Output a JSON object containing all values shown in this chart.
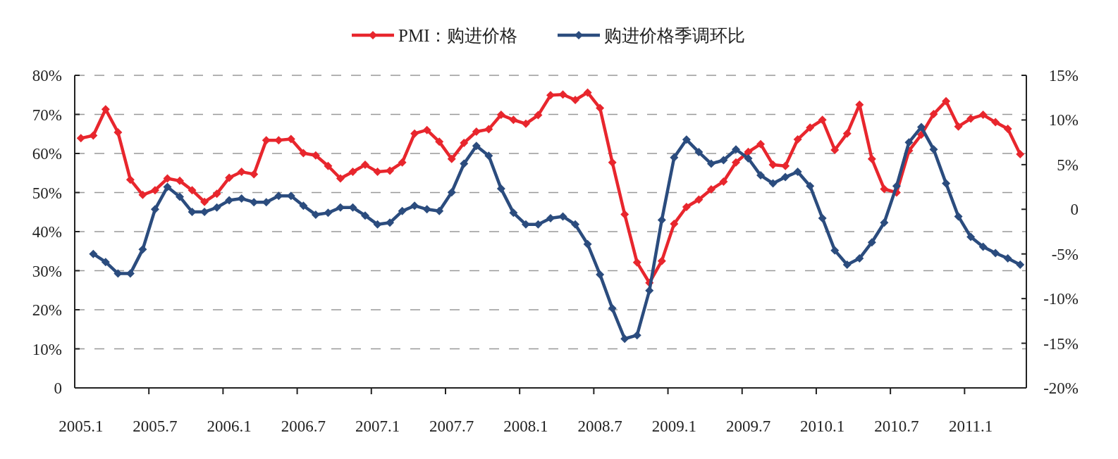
{
  "chart_data": {
    "type": "line",
    "categories": [
      "2005.1",
      null,
      null,
      null,
      null,
      null,
      "2005.7",
      null,
      null,
      null,
      null,
      null,
      "2006.1",
      null,
      null,
      null,
      null,
      null,
      "2006.7",
      null,
      null,
      null,
      null,
      null,
      "2007.1",
      null,
      null,
      null,
      null,
      null,
      "2007.7",
      null,
      null,
      null,
      null,
      null,
      "2008.1",
      null,
      null,
      null,
      null,
      null,
      "2008.7",
      null,
      null,
      null,
      null,
      null,
      "2009.1",
      null,
      null,
      null,
      null,
      null,
      "2009.7",
      null,
      null,
      null,
      null,
      null,
      "2010.1",
      null,
      null,
      null,
      null,
      null,
      "2010.7",
      null,
      null,
      null,
      null,
      null,
      "2011.1",
      null,
      null,
      null,
      null
    ],
    "series": [
      {
        "name": "PMI：购进价格",
        "color": "#e8262d",
        "values": [
          63.9,
          64.6,
          71.3,
          65.4,
          53.3,
          49.4,
          50.6,
          53.6,
          53.0,
          50.6,
          47.6,
          49.7,
          53.8,
          55.3,
          54.7,
          63.4,
          63.4,
          63.7,
          60.1,
          59.5,
          56.8,
          53.6,
          55.3,
          57.1,
          55.3,
          55.6,
          57.7,
          65.1,
          66.0,
          63.0,
          58.6,
          62.7,
          65.6,
          66.2,
          69.9,
          68.6,
          67.6,
          69.8,
          74.9,
          75.1,
          73.7,
          75.6,
          71.6,
          57.7,
          44.4,
          32.1,
          26.9,
          32.5,
          42.0,
          46.3,
          48.2,
          50.8,
          52.8,
          57.7,
          60.4,
          62.4,
          57.1,
          56.8,
          63.6,
          66.6,
          68.6,
          60.9,
          65.1,
          72.5,
          58.6,
          50.9,
          50.0,
          60.7,
          64.8,
          70.1,
          73.4,
          66.9,
          68.9,
          69.9,
          68.0,
          66.3,
          59.8
        ]
      },
      {
        "name": "购进价格季调环比",
        "color": "#2b4c7e",
        "axis": "y2",
        "values": [
          null,
          -5.0,
          -5.9,
          -7.2,
          -7.2,
          -4.5,
          0.0,
          2.5,
          1.4,
          -0.3,
          -0.3,
          0.2,
          1.0,
          1.2,
          0.8,
          0.8,
          1.5,
          1.5,
          0.4,
          -0.6,
          -0.4,
          0.2,
          0.2,
          -0.7,
          -1.7,
          -1.5,
          -0.2,
          0.4,
          0.0,
          -0.2,
          1.9,
          5.1,
          7.1,
          6.0,
          2.3,
          -0.4,
          -1.7,
          -1.7,
          -1.0,
          -0.8,
          -1.7,
          -3.9,
          -7.3,
          -11.1,
          -14.5,
          -14.1,
          -9.1,
          -1.2,
          5.8,
          7.8,
          6.4,
          5.1,
          5.5,
          6.7,
          5.7,
          3.8,
          2.9,
          3.6,
          4.2,
          2.6,
          -1.0,
          -4.6,
          -6.2,
          -5.5,
          -3.7,
          -1.5,
          2.6,
          7.5,
          9.2,
          6.7,
          2.9,
          -0.8,
          -3.1,
          -4.2,
          -4.9,
          -5.5,
          -6.2
        ]
      }
    ],
    "ylim": [
      0,
      80
    ],
    "yticks": [
      {
        "value": 0,
        "label": "0"
      },
      {
        "value": 10,
        "label": "10%"
      },
      {
        "value": 20,
        "label": "20%"
      },
      {
        "value": 30,
        "label": "30%"
      },
      {
        "value": 40,
        "label": "40%"
      },
      {
        "value": 50,
        "label": "50%"
      },
      {
        "value": 60,
        "label": "60%"
      },
      {
        "value": 70,
        "label": "70%"
      },
      {
        "value": 80,
        "label": "80%"
      }
    ],
    "y2lim": [
      -20,
      15
    ],
    "y2ticks": [
      {
        "value": -20,
        "label": "-20%"
      },
      {
        "value": -15,
        "label": "-15%"
      },
      {
        "value": -10,
        "label": "-10%"
      },
      {
        "value": -5,
        "label": "-5%"
      },
      {
        "value": 0,
        "label": "0"
      },
      {
        "value": 5,
        "label": "5%"
      },
      {
        "value": 10,
        "label": "10%"
      },
      {
        "value": 15,
        "label": "15%"
      }
    ],
    "grid": "y",
    "legend": "top",
    "marker": "diamond",
    "line_style": "solid"
  }
}
